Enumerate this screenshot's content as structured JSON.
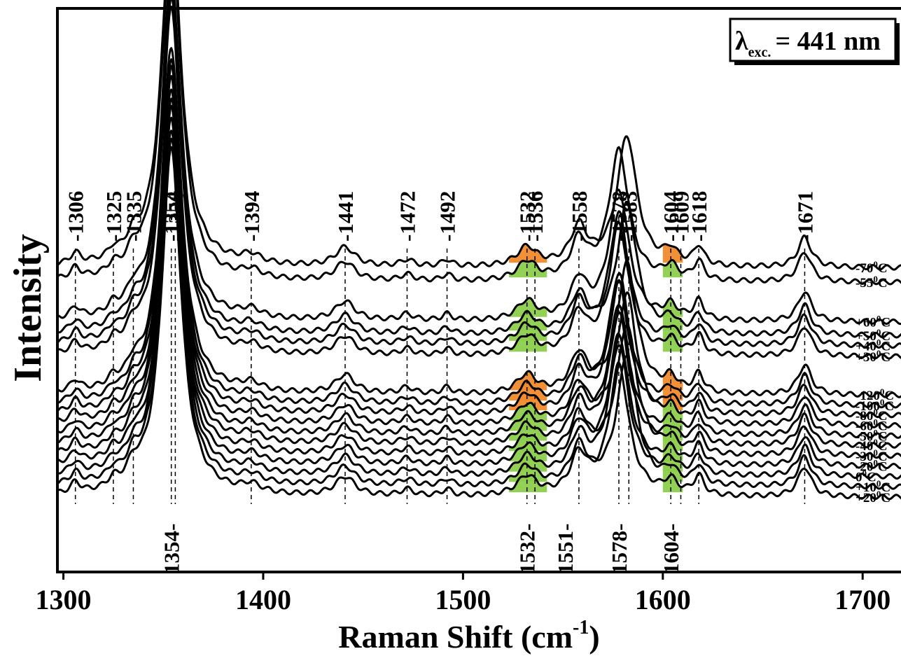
{
  "chart_data": {
    "type": "line",
    "title": "",
    "xlabel": "Raman Shift (cm",
    "xlabel_sup": "-1",
    "xlabel_close": ")",
    "ylabel": "Intensity",
    "xlim": [
      1297,
      1722
    ],
    "xticks": [
      1300,
      1400,
      1500,
      1600,
      1700
    ],
    "grid": false,
    "legend": "none",
    "annotation": {
      "symbol": "λ",
      "sub": "exc.",
      "text": "= 441 nm",
      "position": "top-right"
    },
    "colors": {
      "line": "#000000",
      "green_band": "#8ccf4d",
      "orange_band": "#f08a2c",
      "guide": "#000000"
    },
    "series": [
      {
        "name": "-70",
        "unit": "C",
        "offset": 0.0,
        "band": "orange"
      },
      {
        "name": "-55",
        "unit": "C",
        "offset": 0.027,
        "band": "mixed"
      },
      {
        "name": "+60",
        "unit": "C",
        "offset": 0.1,
        "band": "green"
      },
      {
        "name": "+50",
        "unit": "C",
        "offset": 0.125,
        "band": "green"
      },
      {
        "name": "+40",
        "unit": "C",
        "offset": 0.144,
        "band": "green"
      },
      {
        "name": "+30",
        "unit": "C",
        "offset": 0.164,
        "band": "green"
      },
      {
        "name": "-120",
        "unit": "C",
        "offset": 0.235,
        "band": "orange"
      },
      {
        "name": "-100",
        "unit": "C",
        "offset": 0.254,
        "band": "orange"
      },
      {
        "name": "-80",
        "unit": "C",
        "offset": 0.272,
        "band": "orange"
      },
      {
        "name": "-60",
        "unit": "C",
        "offset": 0.291,
        "band": "mixed"
      },
      {
        "name": "-50",
        "unit": "C",
        "offset": 0.31,
        "band": "green"
      },
      {
        "name": "-40",
        "unit": "C",
        "offset": 0.328,
        "band": "green"
      },
      {
        "name": "-30",
        "unit": "C",
        "offset": 0.347,
        "band": "mixed"
      },
      {
        "name": "-20",
        "unit": "C",
        "offset": 0.366,
        "band": "green"
      },
      {
        "name": "0",
        "unit": "C",
        "offset": 0.385,
        "band": "green"
      },
      {
        "name": "+10",
        "unit": "C",
        "offset": 0.404,
        "band": "green"
      },
      {
        "name": "+20",
        "unit": "C",
        "offset": 0.423,
        "band": "green"
      }
    ],
    "peaks": [
      {
        "pos": 1306,
        "amp": 0.02,
        "w": 3
      },
      {
        "pos": 1325,
        "amp": 0.015,
        "w": 3
      },
      {
        "pos": 1335,
        "amp": 0.03,
        "w": 4
      },
      {
        "pos": 1354,
        "amp": 0.64,
        "w": 6
      },
      {
        "pos": 1394,
        "amp": 0.015,
        "w": 6
      },
      {
        "pos": 1441,
        "amp": 0.035,
        "w": 6
      },
      {
        "pos": 1472,
        "amp": 0.012,
        "w": 4
      },
      {
        "pos": 1492,
        "amp": 0.012,
        "w": 3
      },
      {
        "pos": 1532,
        "amp": 0.035,
        "w": 6
      },
      {
        "pos": 1558,
        "amp": 0.07,
        "w": 5
      },
      {
        "pos": 1578,
        "amp": 0.24,
        "w": 6
      },
      {
        "pos": 1604,
        "amp": 0.025,
        "w": 4
      },
      {
        "pos": 1618,
        "amp": 0.035,
        "w": 3
      },
      {
        "pos": 1671,
        "amp": 0.055,
        "w": 4
      }
    ],
    "guides_top": [
      {
        "x": 1306,
        "label": "1306"
      },
      {
        "x": 1325,
        "label": "1325"
      },
      {
        "x": 1335,
        "label": "1335"
      },
      {
        "x": 1354,
        "label": "1354"
      },
      {
        "x": 1356,
        "label": "1356"
      },
      {
        "x": 1394,
        "label": "1394"
      },
      {
        "x": 1441,
        "label": "1441"
      },
      {
        "x": 1472,
        "label": "1472"
      },
      {
        "x": 1492,
        "label": "1492"
      },
      {
        "x": 1532,
        "label": "1532"
      },
      {
        "x": 1536,
        "label": "1536"
      },
      {
        "x": 1558,
        "label": "1558"
      },
      {
        "x": 1578,
        "label": "1578"
      },
      {
        "x": 1583,
        "label": "1583"
      },
      {
        "x": 1604,
        "label": "1604"
      },
      {
        "x": 1609,
        "label": "1609"
      },
      {
        "x": 1618,
        "label": "1618"
      },
      {
        "x": 1671,
        "label": "1671"
      }
    ],
    "guides_bottom": [
      {
        "x": 1354,
        "label": "1354"
      },
      {
        "x": 1532,
        "label": "1532"
      },
      {
        "x": 1551,
        "label": "1551"
      },
      {
        "x": 1578,
        "label": "1578"
      },
      {
        "x": 1604,
        "label": "1604"
      }
    ]
  }
}
